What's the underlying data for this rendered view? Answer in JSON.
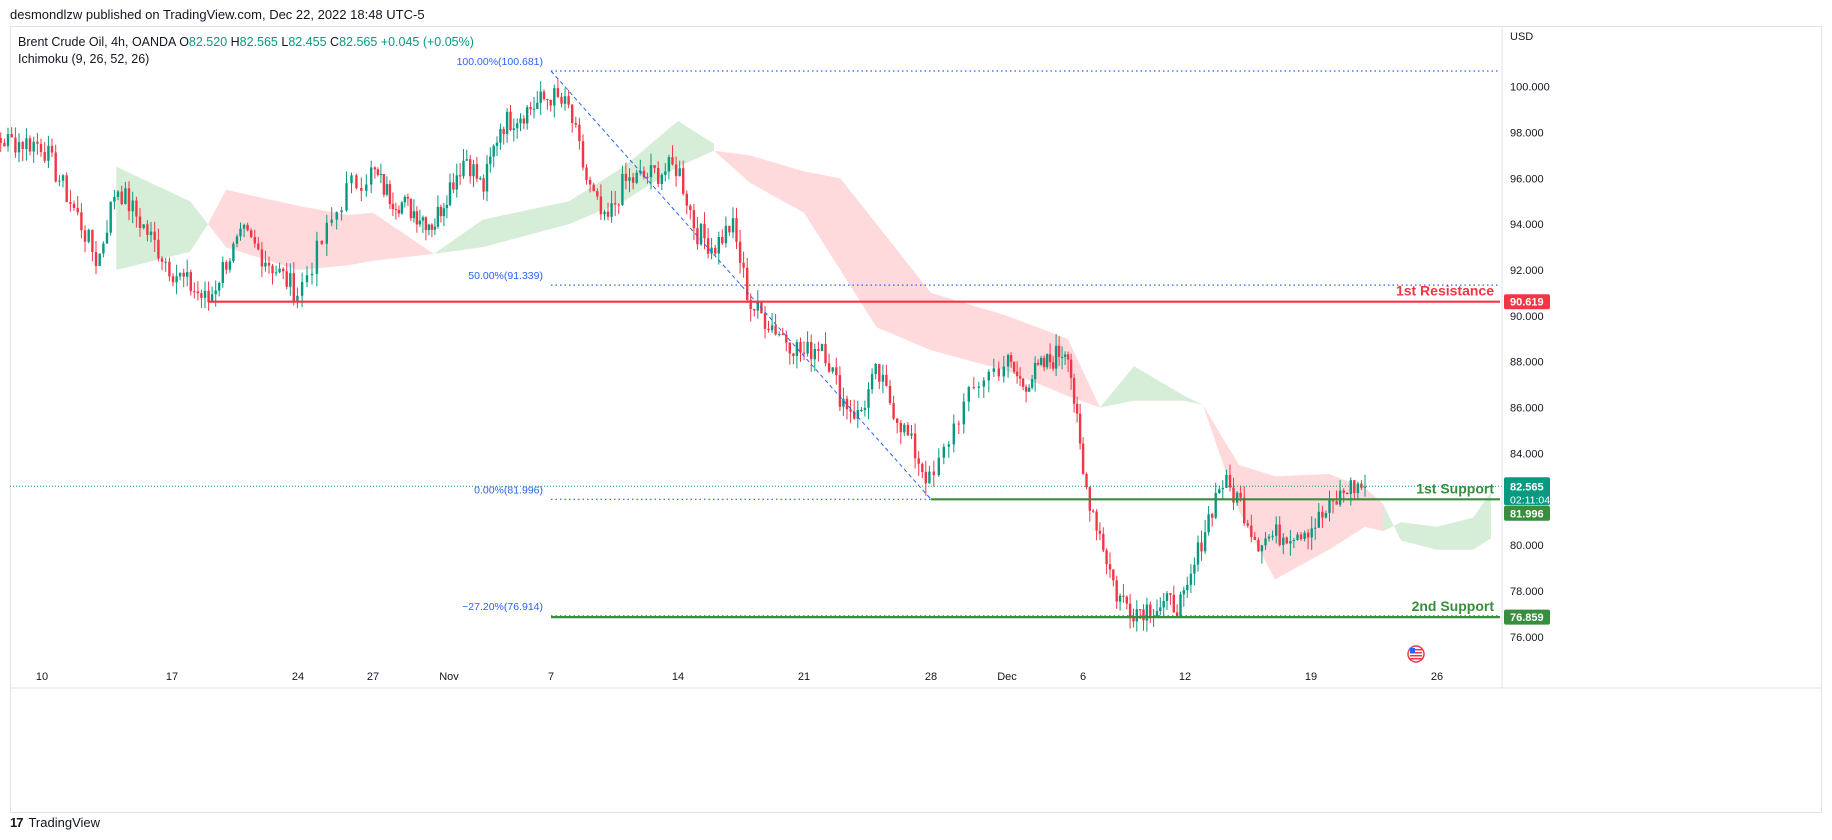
{
  "header": {
    "published": "desmondlzw published on TradingView.com, Dec 22, 2022 18:48 UTC-5"
  },
  "legend": {
    "symbol": "Brent Crude Oil, 4h, OANDA",
    "ohlc": [
      {
        "label": "O",
        "value": "82.520"
      },
      {
        "label": "H",
        "value": "82.565"
      },
      {
        "label": "L",
        "value": "82.455"
      },
      {
        "label": "C",
        "value": "82.565"
      }
    ],
    "change": "+0.045 (+0.05%)",
    "indicator": "Ichimoku (9, 26, 52, 26)"
  },
  "footer": {
    "brand": "TradingView",
    "brand_mark": "17"
  },
  "colors": {
    "up": "#089981",
    "down": "#f23645",
    "resistance": "#f23645",
    "support": "#388e3c",
    "fib": "#2962ff",
    "cloud_bull": "#a5d6a7",
    "cloud_bear": "#ffcdd2",
    "current_price": "#089981"
  },
  "chart_data": {
    "type": "candlestick",
    "currency": "USD",
    "timeframe": "4h",
    "y_axis": {
      "ylim": [
        74.9,
        102.6
      ],
      "ticks": [
        "100.000",
        "98.000",
        "96.000",
        "94.000",
        "92.000",
        "90.000",
        "88.000",
        "86.000",
        "84.000",
        "80.000",
        "78.000",
        "76.000"
      ]
    },
    "x_axis": {
      "ticks": [
        "10",
        "17",
        "24",
        "27",
        "Nov",
        "7",
        "14",
        "21",
        "28",
        "Dec",
        "6",
        "12",
        "19",
        "26"
      ],
      "tick_dates": [
        "2022-10-10",
        "2022-10-17",
        "2022-10-24",
        "2022-10-27",
        "2022-11-01",
        "2022-11-07",
        "2022-11-14",
        "2022-11-21",
        "2022-11-28",
        "2022-12-01",
        "2022-12-06",
        "2022-12-12",
        "2022-12-19",
        "2022-12-26"
      ]
    },
    "levels": [
      {
        "name": "1st Resistance",
        "price": "90.619",
        "value": 90.619,
        "kind": "resistance",
        "from": "2022-10-19"
      },
      {
        "name": "1st Support",
        "price": "81.996",
        "value": 81.996,
        "kind": "support",
        "from": "2022-11-28"
      },
      {
        "name": "2nd Support",
        "price": "76.859",
        "value": 76.859,
        "kind": "support",
        "from": "2022-11-07"
      }
    ],
    "fibonacci": [
      {
        "label": "100.00%(100.681)",
        "value": 100.681
      },
      {
        "label": "50.00%(91.339)",
        "value": 91.339
      },
      {
        "label": "0.00%(81.996)",
        "value": 81.996
      },
      {
        "label": "−27.20%(76.914)",
        "value": 76.914
      }
    ],
    "fib_range": {
      "from": "2022-11-07",
      "to": "2022-11-28"
    },
    "trend_line": {
      "from": {
        "x": "2022-11-07",
        "y": 100.681
      },
      "to": {
        "x": "2022-11-28",
        "y": 81.996
      }
    },
    "current_price": {
      "value": 82.565,
      "label": "82.565",
      "countdown": "02:11:04"
    },
    "swing_points": [
      {
        "x": "2022-10-06",
        "y": 95.5
      },
      {
        "x": "2022-10-07",
        "y": 97.7
      },
      {
        "x": "2022-10-10",
        "y": 97.5
      },
      {
        "x": "2022-10-12",
        "y": 94.2
      },
      {
        "x": "2022-10-13",
        "y": 92.3
      },
      {
        "x": "2022-10-14",
        "y": 95.7
      },
      {
        "x": "2022-10-17",
        "y": 92.0
      },
      {
        "x": "2022-10-19",
        "y": 90.6
      },
      {
        "x": "2022-10-20",
        "y": 92.4
      },
      {
        "x": "2022-10-21",
        "y": 93.5
      },
      {
        "x": "2022-10-24",
        "y": 91.0
      },
      {
        "x": "2022-10-25",
        "y": 93.3
      },
      {
        "x": "2022-10-26",
        "y": 95.6
      },
      {
        "x": "2022-10-27",
        "y": 96.3
      },
      {
        "x": "2022-10-28",
        "y": 95.3
      },
      {
        "x": "2022-10-31",
        "y": 94.0
      },
      {
        "x": "2022-11-01",
        "y": 95.6
      },
      {
        "x": "2022-11-02",
        "y": 97.0
      },
      {
        "x": "2022-11-03",
        "y": 95.5
      },
      {
        "x": "2022-11-04",
        "y": 98.3
      },
      {
        "x": "2022-11-07",
        "y": 99.6
      },
      {
        "x": "2022-11-08",
        "y": 99.0
      },
      {
        "x": "2022-11-09",
        "y": 95.8
      },
      {
        "x": "2022-11-10",
        "y": 93.9
      },
      {
        "x": "2022-11-11",
        "y": 95.8
      },
      {
        "x": "2022-11-14",
        "y": 96.5
      },
      {
        "x": "2022-11-15",
        "y": 93.7
      },
      {
        "x": "2022-11-16",
        "y": 93.0
      },
      {
        "x": "2022-11-17",
        "y": 94.0
      },
      {
        "x": "2022-11-18",
        "y": 90.5
      },
      {
        "x": "2022-11-21",
        "y": 88.3
      },
      {
        "x": "2022-11-22",
        "y": 88.9
      },
      {
        "x": "2022-11-23",
        "y": 86.5
      },
      {
        "x": "2022-11-24",
        "y": 85.6
      },
      {
        "x": "2022-11-25",
        "y": 87.5
      },
      {
        "x": "2022-11-28",
        "y": 82.6
      },
      {
        "x": "2022-11-29",
        "y": 85.5
      },
      {
        "x": "2022-11-30",
        "y": 87.3
      },
      {
        "x": "2022-12-01",
        "y": 88.0
      },
      {
        "x": "2022-12-02",
        "y": 87.0
      },
      {
        "x": "2022-12-05",
        "y": 88.7
      },
      {
        "x": "2022-12-06",
        "y": 83.0
      },
      {
        "x": "2022-12-07",
        "y": 80.5
      },
      {
        "x": "2022-12-08",
        "y": 77.8
      },
      {
        "x": "2022-12-09",
        "y": 77.2
      },
      {
        "x": "2022-12-12",
        "y": 77.5
      },
      {
        "x": "2022-12-13",
        "y": 80.5
      },
      {
        "x": "2022-12-14",
        "y": 82.8
      },
      {
        "x": "2022-12-15",
        "y": 82.0
      },
      {
        "x": "2022-12-16",
        "y": 80.2
      },
      {
        "x": "2022-12-19",
        "y": 80.8
      },
      {
        "x": "2022-12-20",
        "y": 81.5
      },
      {
        "x": "2022-12-21",
        "y": 82.5
      },
      {
        "x": "2022-12-22",
        "y": 82.6
      }
    ],
    "cloud_bands": [
      {
        "kind": "bull",
        "points": [
          [
            "2022-10-14",
            96.5,
            92.0
          ],
          [
            "2022-10-18",
            95.0,
            92.8
          ],
          [
            "2022-10-19",
            94.0,
            94.0
          ]
        ]
      },
      {
        "kind": "bear",
        "points": [
          [
            "2022-10-19",
            94.0,
            94.0
          ],
          [
            "2022-10-20",
            95.5,
            93.0
          ],
          [
            "2022-10-24",
            94.8,
            92.0
          ],
          [
            "2022-10-26",
            94.4,
            92.2
          ],
          [
            "2022-10-27",
            94.5,
            92.4
          ],
          [
            "2022-10-31",
            92.7,
            92.7
          ]
        ]
      },
      {
        "kind": "bull",
        "points": [
          [
            "2022-10-31",
            92.7,
            92.7
          ],
          [
            "2022-11-03",
            94.2,
            93.0
          ],
          [
            "2022-11-08",
            95.0,
            94.0
          ],
          [
            "2022-11-11",
            96.5,
            95.0
          ],
          [
            "2022-11-14",
            98.5,
            96.5
          ],
          [
            "2022-11-16",
            97.5,
            97.2
          ]
        ]
      },
      {
        "kind": "bear",
        "points": [
          [
            "2022-11-16",
            97.2,
            97.2
          ],
          [
            "2022-11-18",
            97.0,
            95.8
          ],
          [
            "2022-11-21",
            96.3,
            94.5
          ],
          [
            "2022-11-23",
            96.0,
            92.0
          ],
          [
            "2022-11-25",
            94.0,
            89.5
          ],
          [
            "2022-11-28",
            91.0,
            88.5
          ],
          [
            "2022-12-01",
            90.0,
            87.6
          ],
          [
            "2022-12-05",
            89.0,
            86.5
          ],
          [
            "2022-12-07",
            86.0,
            86.0
          ]
        ]
      },
      {
        "kind": "bull",
        "points": [
          [
            "2022-12-07",
            86.0,
            86.0
          ],
          [
            "2022-12-09",
            87.8,
            86.3
          ],
          [
            "2022-12-12",
            86.5,
            86.3
          ],
          [
            "2022-12-13",
            86.1,
            86.1
          ]
        ]
      },
      {
        "kind": "bear",
        "points": [
          [
            "2022-12-13",
            86.1,
            86.1
          ],
          [
            "2022-12-15",
            83.5,
            81.5
          ],
          [
            "2022-12-17",
            83.0,
            78.5
          ],
          [
            "2022-12-20",
            83.1,
            79.8
          ],
          [
            "2022-12-22",
            82.5,
            80.8
          ],
          [
            "2022-12-23",
            81.8,
            80.6
          ]
        ]
      },
      {
        "kind": "bull",
        "points": [
          [
            "2022-12-23",
            80.6,
            81.8
          ],
          [
            "2022-12-24",
            81.0,
            80.2
          ],
          [
            "2022-12-26",
            80.8,
            79.8
          ],
          [
            "2022-12-28",
            81.2,
            79.8
          ],
          [
            "2022-12-29",
            82.3,
            80.3
          ]
        ]
      }
    ]
  }
}
